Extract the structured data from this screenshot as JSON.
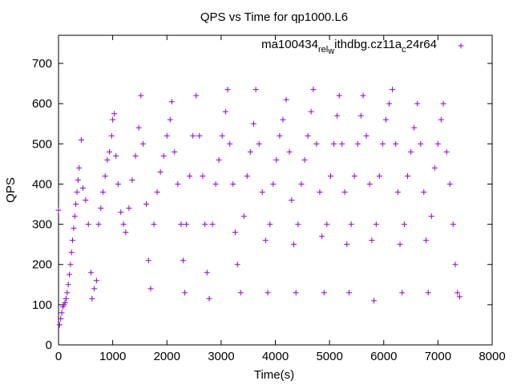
{
  "chart_data": {
    "type": "scatter",
    "title": "QPS vs Time for qp1000.L6",
    "xlabel": "Time(s)",
    "ylabel": "QPS",
    "xlim": [
      0,
      8000
    ],
    "ylim": [
      0,
      770
    ],
    "xticks": [
      "0",
      "1000",
      "2000",
      "3000",
      "4000",
      "5000",
      "6000",
      "7000",
      "8000"
    ],
    "yticks": [
      "0",
      "100",
      "200",
      "300",
      "400",
      "500",
      "600",
      "700"
    ],
    "legend_position": "top-right",
    "grid": false,
    "series": [
      {
        "name_parts": [
          "ma100434",
          "rel",
          "w",
          "ithdbg.cz11a",
          "c",
          "24r64"
        ],
        "color": "#9400d3",
        "marker": "plus",
        "points": [
          [
            0,
            335
          ],
          [
            20,
            50
          ],
          [
            40,
            65
          ],
          [
            60,
            80
          ],
          [
            80,
            95
          ],
          [
            100,
            100
          ],
          [
            120,
            105
          ],
          [
            140,
            115
          ],
          [
            160,
            130
          ],
          [
            180,
            150
          ],
          [
            200,
            175
          ],
          [
            220,
            200
          ],
          [
            240,
            230
          ],
          [
            260,
            260
          ],
          [
            280,
            290
          ],
          [
            300,
            320
          ],
          [
            320,
            350
          ],
          [
            340,
            380
          ],
          [
            360,
            410
          ],
          [
            380,
            440
          ],
          [
            420,
            510
          ],
          [
            450,
            390
          ],
          [
            500,
            360
          ],
          [
            550,
            300
          ],
          [
            600,
            180
          ],
          [
            620,
            115
          ],
          [
            660,
            140
          ],
          [
            700,
            160
          ],
          [
            740,
            300
          ],
          [
            780,
            340
          ],
          [
            820,
            380
          ],
          [
            860,
            420
          ],
          [
            900,
            460
          ],
          [
            940,
            480
          ],
          [
            980,
            520
          ],
          [
            1000,
            560
          ],
          [
            1030,
            575
          ],
          [
            1060,
            470
          ],
          [
            1100,
            400
          ],
          [
            1150,
            330
          ],
          [
            1200,
            300
          ],
          [
            1240,
            280
          ],
          [
            1300,
            340
          ],
          [
            1360,
            410
          ],
          [
            1420,
            470
          ],
          [
            1480,
            540
          ],
          [
            1520,
            620
          ],
          [
            1560,
            500
          ],
          [
            1620,
            350
          ],
          [
            1660,
            210
          ],
          [
            1700,
            140
          ],
          [
            1760,
            300
          ],
          [
            1820,
            380
          ],
          [
            1880,
            430
          ],
          [
            1940,
            470
          ],
          [
            2000,
            520
          ],
          [
            2060,
            560
          ],
          [
            2090,
            605
          ],
          [
            2140,
            480
          ],
          [
            2200,
            400
          ],
          [
            2260,
            300
          ],
          [
            2300,
            210
          ],
          [
            2330,
            130
          ],
          [
            2360,
            300
          ],
          [
            2420,
            420
          ],
          [
            2480,
            520
          ],
          [
            2540,
            620
          ],
          [
            2600,
            520
          ],
          [
            2660,
            420
          ],
          [
            2700,
            300
          ],
          [
            2740,
            180
          ],
          [
            2780,
            115
          ],
          [
            2840,
            300
          ],
          [
            2900,
            400
          ],
          [
            2960,
            460
          ],
          [
            3020,
            520
          ],
          [
            3080,
            580
          ],
          [
            3120,
            635
          ],
          [
            3160,
            500
          ],
          [
            3220,
            400
          ],
          [
            3260,
            280
          ],
          [
            3300,
            200
          ],
          [
            3360,
            130
          ],
          [
            3420,
            320
          ],
          [
            3480,
            420
          ],
          [
            3540,
            480
          ],
          [
            3600,
            550
          ],
          [
            3640,
            635
          ],
          [
            3700,
            500
          ],
          [
            3760,
            380
          ],
          [
            3820,
            260
          ],
          [
            3860,
            130
          ],
          [
            3900,
            300
          ],
          [
            3960,
            400
          ],
          [
            4020,
            460
          ],
          [
            4080,
            520
          ],
          [
            4140,
            560
          ],
          [
            4200,
            610
          ],
          [
            4260,
            480
          ],
          [
            4300,
            360
          ],
          [
            4340,
            250
          ],
          [
            4380,
            130
          ],
          [
            4420,
            300
          ],
          [
            4480,
            400
          ],
          [
            4540,
            460
          ],
          [
            4600,
            520
          ],
          [
            4660,
            580
          ],
          [
            4700,
            635
          ],
          [
            4760,
            500
          ],
          [
            4820,
            380
          ],
          [
            4860,
            270
          ],
          [
            4900,
            130
          ],
          [
            4950,
            300
          ],
          [
            5020,
            420
          ],
          [
            5080,
            500
          ],
          [
            5140,
            570
          ],
          [
            5180,
            620
          ],
          [
            5230,
            500
          ],
          [
            5280,
            380
          ],
          [
            5320,
            250
          ],
          [
            5360,
            130
          ],
          [
            5400,
            300
          ],
          [
            5460,
            420
          ],
          [
            5520,
            500
          ],
          [
            5580,
            570
          ],
          [
            5620,
            620
          ],
          [
            5680,
            520
          ],
          [
            5740,
            400
          ],
          [
            5780,
            260
          ],
          [
            5820,
            110
          ],
          [
            5860,
            300
          ],
          [
            5920,
            420
          ],
          [
            5980,
            500
          ],
          [
            6040,
            560
          ],
          [
            6100,
            600
          ],
          [
            6160,
            635
          ],
          [
            6220,
            500
          ],
          [
            6260,
            380
          ],
          [
            6300,
            250
          ],
          [
            6340,
            130
          ],
          [
            6380,
            300
          ],
          [
            6440,
            420
          ],
          [
            6500,
            480
          ],
          [
            6560,
            540
          ],
          [
            6620,
            600
          ],
          [
            6680,
            500
          ],
          [
            6740,
            380
          ],
          [
            6780,
            260
          ],
          [
            6820,
            130
          ],
          [
            6880,
            320
          ],
          [
            6940,
            440
          ],
          [
            7000,
            500
          ],
          [
            7060,
            560
          ],
          [
            7100,
            600
          ],
          [
            7160,
            480
          ],
          [
            7220,
            400
          ],
          [
            7280,
            300
          ],
          [
            7320,
            200
          ],
          [
            7360,
            130
          ],
          [
            7400,
            120
          ]
        ]
      }
    ]
  }
}
